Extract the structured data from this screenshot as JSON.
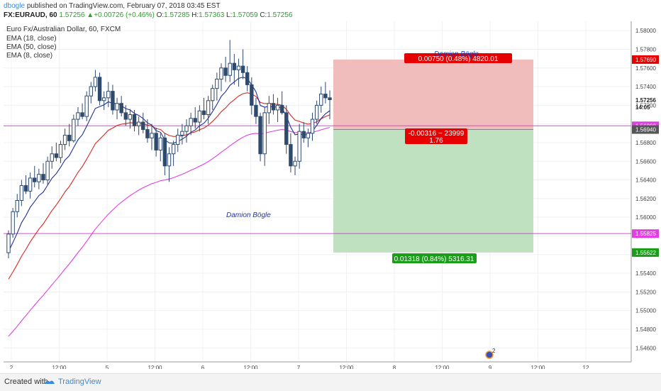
{
  "header": {
    "author": "dbogle",
    "published_text": "published on TradingView.com, February 07, 2018 03:45 EST",
    "symbol": "FX:EURAUD, 60",
    "last": "1.57256",
    "change": "+0.00726 (+0.46%)",
    "o_label": "O:",
    "o_value": "1.57285",
    "h_label": "H:",
    "h_value": "1.57363",
    "l_label": "L:",
    "l_value": "1.57059",
    "c_label": "C:",
    "c_value": "1.57256"
  },
  "legend": {
    "title": "Euro Fx/Australian Dollar, 60, FXCM",
    "items": [
      "EMA (18, close)",
      "EMA (50, close)",
      "EMA (8, close)"
    ]
  },
  "colors": {
    "ema8": "#1f2f9e",
    "ema18": "#d9281f",
    "ema50": "#e040e0",
    "hline": "#e040e0",
    "stop_zone": "#f0bcbc",
    "target_zone": "#bfe1bf",
    "stop_label": "#e60000",
    "target_label": "#1a9e1a",
    "candle": "#2f4a6d"
  },
  "chart_data": {
    "type": "candlestick",
    "y_ticks": [
      "1.58000",
      "1.57800",
      "1.57600",
      "1.57400",
      "1.57200",
      "1.57000",
      "1.56800",
      "1.56600",
      "1.56400",
      "1.56200",
      "1.56000",
      "1.55800",
      "1.55600",
      "1.55400",
      "1.55200",
      "1.55000",
      "1.54800",
      "1.54600"
    ],
    "x_ticks": [
      "2",
      "12:00",
      "5",
      "12:00",
      "6",
      "12:00",
      "7",
      "12:00",
      "8",
      "12:00",
      "9",
      "12:00",
      "12"
    ],
    "price_labels": [
      {
        "text": "1.57690",
        "kind": "red"
      },
      {
        "text": "1.57256",
        "kind": "plain"
      },
      {
        "text": "14:05",
        "kind": "plain"
      },
      {
        "text": "1.56980",
        "kind": "magenta"
      },
      {
        "text": "1.56940",
        "kind": "grey"
      },
      {
        "text": "1.55825",
        "kind": "magenta"
      },
      {
        "text": "1.55622",
        "kind": "green"
      }
    ],
    "position_box": {
      "entry": 1.5694,
      "stop": 1.5769,
      "target": 1.55622,
      "stop_label": "0.00750 (0.48%) 4820.01",
      "center_label_1": "-0.00316 ~ 23999",
      "center_label_2": "1.76",
      "target_label": "0.01318 (0.84%) 5316.31"
    },
    "horizontal_lines": [
      1.5698,
      1.55825
    ],
    "annotations": [
      "Damion Bögle",
      "Damion Bögle"
    ],
    "candles": [
      [
        1.5562,
        1.5586,
        1.5556,
        1.5582
      ],
      [
        1.5582,
        1.561,
        1.5578,
        1.5606
      ],
      [
        1.5606,
        1.5625,
        1.56,
        1.5618
      ],
      [
        1.5618,
        1.564,
        1.5612,
        1.5634
      ],
      [
        1.5634,
        1.5645,
        1.5625,
        1.5628
      ],
      [
        1.5628,
        1.5648,
        1.562,
        1.5642
      ],
      [
        1.5642,
        1.5655,
        1.5632,
        1.5638
      ],
      [
        1.5638,
        1.5652,
        1.563,
        1.5646
      ],
      [
        1.5646,
        1.5658,
        1.5636,
        1.564
      ],
      [
        1.564,
        1.5665,
        1.5635,
        1.566
      ],
      [
        1.566,
        1.5676,
        1.5652,
        1.5668
      ],
      [
        1.5668,
        1.568,
        1.566,
        1.5664
      ],
      [
        1.5664,
        1.5682,
        1.5658,
        1.5678
      ],
      [
        1.5678,
        1.5695,
        1.5672,
        1.5688
      ],
      [
        1.5688,
        1.57,
        1.5676,
        1.5682
      ],
      [
        1.5682,
        1.571,
        1.568,
        1.5705
      ],
      [
        1.5705,
        1.5718,
        1.5698,
        1.5712
      ],
      [
        1.5712,
        1.5722,
        1.5705,
        1.5708
      ],
      [
        1.5708,
        1.5735,
        1.5703,
        1.573
      ],
      [
        1.573,
        1.5745,
        1.5722,
        1.574
      ],
      [
        1.574,
        1.5758,
        1.5735,
        1.575
      ],
      [
        1.575,
        1.5755,
        1.572,
        1.5725
      ],
      [
        1.5725,
        1.5735,
        1.5715,
        1.5728
      ],
      [
        1.5728,
        1.5745,
        1.5718,
        1.5735
      ],
      [
        1.5735,
        1.5742,
        1.571,
        1.5715
      ],
      [
        1.5715,
        1.5728,
        1.5705,
        1.5722
      ],
      [
        1.5722,
        1.573,
        1.5708,
        1.5712
      ],
      [
        1.5712,
        1.572,
        1.5698,
        1.5705
      ],
      [
        1.5705,
        1.5716,
        1.5695,
        1.571
      ],
      [
        1.571,
        1.5715,
        1.5692,
        1.5698
      ],
      [
        1.5698,
        1.5708,
        1.5688,
        1.5702
      ],
      [
        1.5702,
        1.5712,
        1.569,
        1.5694
      ],
      [
        1.5694,
        1.5705,
        1.568,
        1.5685
      ],
      [
        1.5685,
        1.57,
        1.5672,
        1.569
      ],
      [
        1.569,
        1.5696,
        1.5665,
        1.5672
      ],
      [
        1.5672,
        1.569,
        1.566,
        1.5685
      ],
      [
        1.5685,
        1.569,
        1.5645,
        1.5655
      ],
      [
        1.5655,
        1.5675,
        1.5638,
        1.5668
      ],
      [
        1.5668,
        1.5682,
        1.5655,
        1.5678
      ],
      [
        1.5678,
        1.5695,
        1.567,
        1.5688
      ],
      [
        1.5688,
        1.57,
        1.5678,
        1.5692
      ],
      [
        1.5692,
        1.5705,
        1.568,
        1.5698
      ],
      [
        1.5698,
        1.5712,
        1.5688,
        1.5706
      ],
      [
        1.5706,
        1.5718,
        1.5695,
        1.5702
      ],
      [
        1.5702,
        1.572,
        1.5692,
        1.5714
      ],
      [
        1.5714,
        1.5728,
        1.5705,
        1.571
      ],
      [
        1.571,
        1.573,
        1.57,
        1.5725
      ],
      [
        1.5725,
        1.5742,
        1.5715,
        1.5738
      ],
      [
        1.5738,
        1.5755,
        1.5725,
        1.5748
      ],
      [
        1.5748,
        1.5765,
        1.5735,
        1.576
      ],
      [
        1.576,
        1.5772,
        1.5745,
        1.5752
      ],
      [
        1.5752,
        1.579,
        1.5745,
        1.5765
      ],
      [
        1.5765,
        1.5775,
        1.5742,
        1.5758
      ],
      [
        1.5758,
        1.577,
        1.574,
        1.5762
      ],
      [
        1.5762,
        1.578,
        1.5748,
        1.5755
      ],
      [
        1.5755,
        1.5762,
        1.5735,
        1.5742
      ],
      [
        1.5742,
        1.575,
        1.571,
        1.572
      ],
      [
        1.572,
        1.5728,
        1.57,
        1.5708
      ],
      [
        1.5708,
        1.5712,
        1.566,
        1.5668
      ],
      [
        1.5668,
        1.5718,
        1.5655,
        1.5712
      ],
      [
        1.5712,
        1.573,
        1.57,
        1.5722
      ],
      [
        1.5722,
        1.5732,
        1.571,
        1.5715
      ],
      [
        1.5715,
        1.5728,
        1.5702,
        1.572
      ],
      [
        1.572,
        1.5735,
        1.571,
        1.5712
      ],
      [
        1.5712,
        1.572,
        1.5668,
        1.5678
      ],
      [
        1.5678,
        1.569,
        1.5648,
        1.5655
      ],
      [
        1.5655,
        1.5665,
        1.5645,
        1.566
      ],
      [
        1.566,
        1.57,
        1.5652,
        1.5692
      ],
      [
        1.5692,
        1.5702,
        1.568,
        1.5685
      ],
      [
        1.5685,
        1.5695,
        1.5675,
        1.569
      ],
      [
        1.569,
        1.5712,
        1.5682,
        1.5705
      ],
      [
        1.5705,
        1.5725,
        1.57,
        1.572
      ],
      [
        1.572,
        1.574,
        1.5712,
        1.5732
      ],
      [
        1.5732,
        1.5745,
        1.5722,
        1.5728
      ],
      [
        1.5728,
        1.5736,
        1.5705,
        1.5726
      ]
    ]
  },
  "footer": {
    "created_with": "Created with",
    "brand": "TradingView"
  }
}
